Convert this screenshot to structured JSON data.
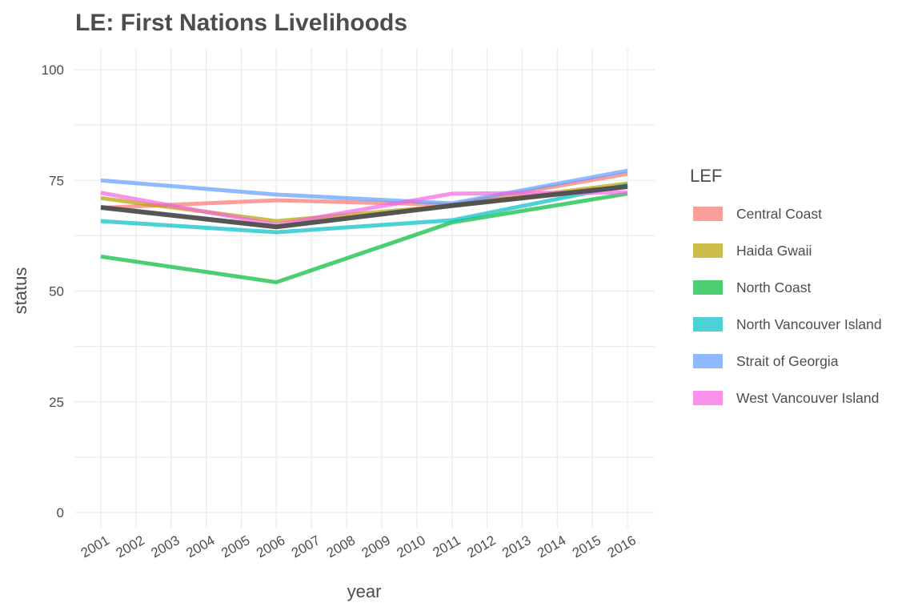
{
  "chart_data": {
    "type": "line",
    "title": "LE: First Nations Livelihoods",
    "xlabel": "year",
    "ylabel": "status",
    "ylim": [
      0,
      100
    ],
    "yticks": [
      0,
      25,
      50,
      75,
      100
    ],
    "x": [
      2001,
      2002,
      2003,
      2004,
      2005,
      2006,
      2007,
      2008,
      2009,
      2010,
      2011,
      2012,
      2013,
      2014,
      2015,
      2016
    ],
    "legend": {
      "title": "LEF",
      "position": "right"
    },
    "grid": true,
    "series": [
      {
        "name": "Central Coast",
        "color": "#F8766D",
        "points": [
          [
            2001,
            68.8
          ],
          [
            2006,
            70.5
          ],
          [
            2011,
            69.5
          ],
          [
            2016,
            76.5
          ]
        ]
      },
      {
        "name": "Haida Gwaii",
        "color": "#B79F00",
        "points": [
          [
            2001,
            71.0
          ],
          [
            2006,
            65.8
          ],
          [
            2011,
            69.3
          ],
          [
            2016,
            74.3
          ]
        ]
      },
      {
        "name": "North Coast",
        "color": "#00BA38",
        "points": [
          [
            2001,
            57.8
          ],
          [
            2006,
            52.0
          ],
          [
            2011,
            65.5
          ],
          [
            2016,
            72.0
          ]
        ]
      },
      {
        "name": "North Vancouver Island",
        "color": "#00BFC4",
        "points": [
          [
            2001,
            65.8
          ],
          [
            2006,
            63.3
          ],
          [
            2011,
            66.0
          ],
          [
            2016,
            74.0
          ]
        ]
      },
      {
        "name": "Strait of Georgia",
        "color": "#619CFF",
        "points": [
          [
            2001,
            75.0
          ],
          [
            2006,
            71.8
          ],
          [
            2011,
            69.8
          ],
          [
            2016,
            77.2
          ]
        ]
      },
      {
        "name": "West Vancouver Island",
        "color": "#F564E3",
        "points": [
          [
            2001,
            72.2
          ],
          [
            2006,
            65.0
          ],
          [
            2011,
            72.0
          ],
          [
            2016,
            72.3
          ]
        ]
      },
      {
        "name": "",
        "color": "#4d4d4d",
        "width": 6,
        "points": [
          [
            2001,
            68.9
          ],
          [
            2006,
            64.5
          ],
          [
            2011,
            69.3
          ],
          [
            2016,
            73.6
          ]
        ]
      }
    ]
  }
}
